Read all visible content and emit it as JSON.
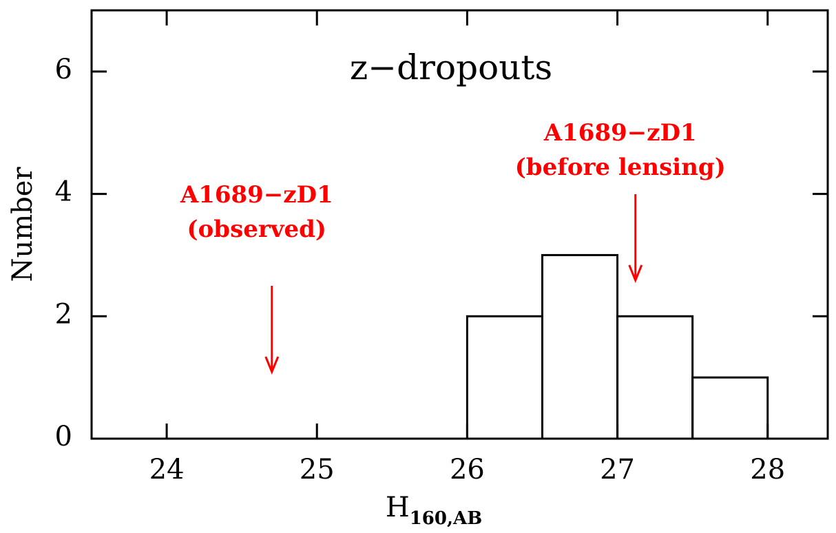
{
  "chart_data": {
    "type": "histogram",
    "title": "z−dropouts",
    "xlabel": {
      "main": "H",
      "sub": "160,AB"
    },
    "ylabel": "Number",
    "bins": [
      26,
      26.5,
      27,
      27.5,
      28
    ],
    "counts": [
      2,
      3,
      2,
      1
    ],
    "color": "#000000",
    "xlim": [
      23.5,
      28.4
    ],
    "xticks": [
      24,
      25,
      26,
      27,
      28
    ],
    "ylim": [
      0,
      7
    ],
    "yticks": [
      0,
      2,
      4,
      6
    ],
    "annotations": [
      {
        "lines": [
          "A1689−zD1",
          "(observed)"
        ],
        "x": 24.7,
        "color": "#ff0000"
      },
      {
        "lines": [
          "A1689−zD1",
          "(before lensing)"
        ],
        "x": 27.12,
        "color": "#ff0000"
      }
    ]
  }
}
